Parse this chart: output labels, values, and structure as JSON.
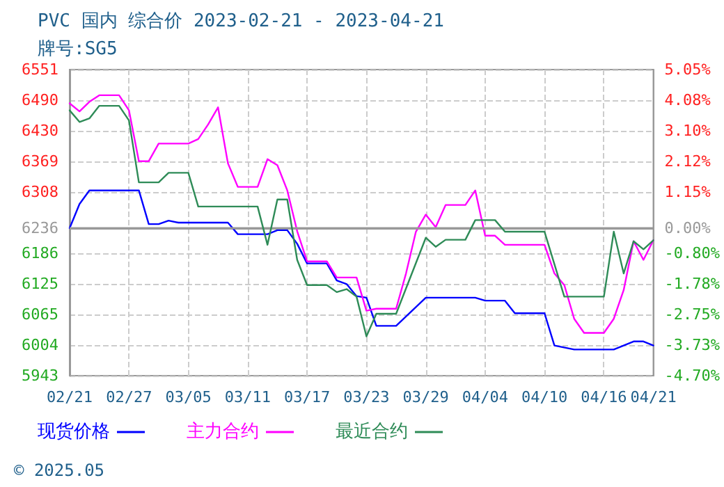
{
  "chart_data": {
    "type": "line",
    "title": "PVC 国内 综合价 2023-02-21 - 2023-04-21",
    "subtitle": "牌号:SG5",
    "xlim": [
      "2023-02-21",
      "2023-04-21"
    ],
    "xticks": [
      {
        "value": "2023-02-21",
        "label": "02/21"
      },
      {
        "value": "2023-02-27",
        "label": "02/27"
      },
      {
        "value": "2023-03-05",
        "label": "03/05"
      },
      {
        "value": "2023-03-11",
        "label": "03/11"
      },
      {
        "value": "2023-03-17",
        "label": "03/17"
      },
      {
        "value": "2023-03-23",
        "label": "03/23"
      },
      {
        "value": "2023-03-29",
        "label": "03/29"
      },
      {
        "value": "2023-04-04",
        "label": "04/04"
      },
      {
        "value": "2023-04-10",
        "label": "04/10"
      },
      {
        "value": "2023-04-16",
        "label": "04/16"
      },
      {
        "value": "2023-04-21",
        "label": "04/21"
      }
    ],
    "ylim": [
      5943,
      6551
    ],
    "yticks": [
      5943,
      6004,
      6065,
      6125,
      6186,
      6236,
      6308,
      6369,
      6430,
      6490,
      6551
    ],
    "y2lim": [
      -4.7,
      5.05
    ],
    "y2ticks": [
      {
        "value": -4.7,
        "label": "-4.70%"
      },
      {
        "value": -3.73,
        "label": "-3.73%"
      },
      {
        "value": -2.75,
        "label": "-2.75%"
      },
      {
        "value": -1.78,
        "label": "-1.78%"
      },
      {
        "value": -0.8,
        "label": "-0.80%"
      },
      {
        "value": 0,
        "label": "0.00%"
      },
      {
        "value": 1.15,
        "label": "1.15%"
      },
      {
        "value": 2.12,
        "label": "2.12%"
      },
      {
        "value": 3.1,
        "label": "3.10%"
      },
      {
        "value": 4.08,
        "label": "4.08%"
      },
      {
        "value": 5.05,
        "label": "5.05%"
      }
    ],
    "grid": true,
    "legend": "bottom left",
    "marker": "none",
    "line_style": "solid",
    "ref_lines": [
      {
        "axis": "y2",
        "value": 0,
        "color": "#999999"
      }
    ],
    "annotations": [
      "© 2025.05"
    ],
    "series": [
      {
        "name": "现货价格",
        "color": "#0000ff",
        "x": [
          "2023-02-21",
          "2023-02-22",
          "2023-02-23",
          "2023-02-28",
          "2023-03-01",
          "2023-03-02",
          "2023-03-03",
          "2023-03-04",
          "2023-03-09",
          "2023-03-10",
          "2023-03-13",
          "2023-03-14",
          "2023-03-15",
          "2023-03-16",
          "2023-03-17",
          "2023-03-19",
          "2023-03-20",
          "2023-03-21",
          "2023-03-22",
          "2023-03-23",
          "2023-03-24",
          "2023-03-26",
          "2023-03-29",
          "2023-04-03",
          "2023-04-04",
          "2023-04-06",
          "2023-04-07",
          "2023-04-10",
          "2023-04-11",
          "2023-04-13",
          "2023-04-17",
          "2023-04-19",
          "2023-04-20",
          "2023-04-21"
        ],
        "values": [
          6236,
          6284,
          6311,
          6311,
          6244,
          6244,
          6251,
          6247,
          6247,
          6224,
          6224,
          6232,
          6232,
          6205,
          6166,
          6166,
          6132,
          6125,
          6101,
          6098,
          6042,
          6042,
          6098,
          6098,
          6092,
          6092,
          6067,
          6067,
          6003,
          5995,
          5995,
          6011,
          6011,
          6003
        ]
      },
      {
        "name": "主力合约",
        "color": "#ff00ff",
        "x": [
          "2023-02-21",
          "2023-02-22",
          "2023-02-23",
          "2023-02-24",
          "2023-02-26",
          "2023-02-27",
          "2023-02-28",
          "2023-03-01",
          "2023-03-02",
          "2023-03-05",
          "2023-03-06",
          "2023-03-07",
          "2023-03-08",
          "2023-03-09",
          "2023-03-10",
          "2023-03-12",
          "2023-03-13",
          "2023-03-14",
          "2023-03-15",
          "2023-03-16",
          "2023-03-17",
          "2023-03-19",
          "2023-03-20",
          "2023-03-22",
          "2023-03-23",
          "2023-03-24",
          "2023-03-26",
          "2023-03-27",
          "2023-03-28",
          "2023-03-29",
          "2023-03-30",
          "2023-03-31",
          "2023-04-02",
          "2023-04-03",
          "2023-04-04",
          "2023-04-05",
          "2023-04-06",
          "2023-04-10",
          "2023-04-11",
          "2023-04-12",
          "2023-04-13",
          "2023-04-14",
          "2023-04-16",
          "2023-04-17",
          "2023-04-18",
          "2023-04-19",
          "2023-04-20",
          "2023-04-21"
        ],
        "values": [
          6484,
          6468,
          6487,
          6500,
          6500,
          6470,
          6369,
          6369,
          6404,
          6404,
          6413,
          6442,
          6476,
          6365,
          6318,
          6318,
          6373,
          6361,
          6311,
          6230,
          6170,
          6170,
          6138,
          6138,
          6072,
          6076,
          6076,
          6146,
          6229,
          6263,
          6238,
          6282,
          6282,
          6311,
          6221,
          6221,
          6203,
          6203,
          6146,
          6123,
          6056,
          6028,
          6028,
          6056,
          6113,
          6210,
          6173,
          6212
        ]
      },
      {
        "name": "最近合约",
        "color": "#2e8b57",
        "x": [
          "2023-02-21",
          "2023-02-22",
          "2023-02-23",
          "2023-02-24",
          "2023-02-26",
          "2023-02-27",
          "2023-02-28",
          "2023-03-02",
          "2023-03-03",
          "2023-03-05",
          "2023-03-06",
          "2023-03-12",
          "2023-03-13",
          "2023-03-14",
          "2023-03-15",
          "2023-03-16",
          "2023-03-17",
          "2023-03-19",
          "2023-03-20",
          "2023-03-21",
          "2023-03-22",
          "2023-03-23",
          "2023-03-24",
          "2023-03-26",
          "2023-03-29",
          "2023-03-30",
          "2023-03-31",
          "2023-04-02",
          "2023-04-03",
          "2023-04-05",
          "2023-04-06",
          "2023-04-10",
          "2023-04-12",
          "2023-04-16",
          "2023-04-17",
          "2023-04-18",
          "2023-04-19",
          "2023-04-20",
          "2023-04-21"
        ],
        "values": [
          6470,
          6447,
          6454,
          6479,
          6479,
          6450,
          6327,
          6327,
          6346,
          6346,
          6279,
          6279,
          6203,
          6293,
          6293,
          6173,
          6123,
          6123,
          6109,
          6115,
          6100,
          6021,
          6066,
          6066,
          6217,
          6199,
          6213,
          6213,
          6252,
          6252,
          6229,
          6229,
          6100,
          6100,
          6229,
          6146,
          6210,
          6194,
          6212
        ]
      }
    ]
  }
}
